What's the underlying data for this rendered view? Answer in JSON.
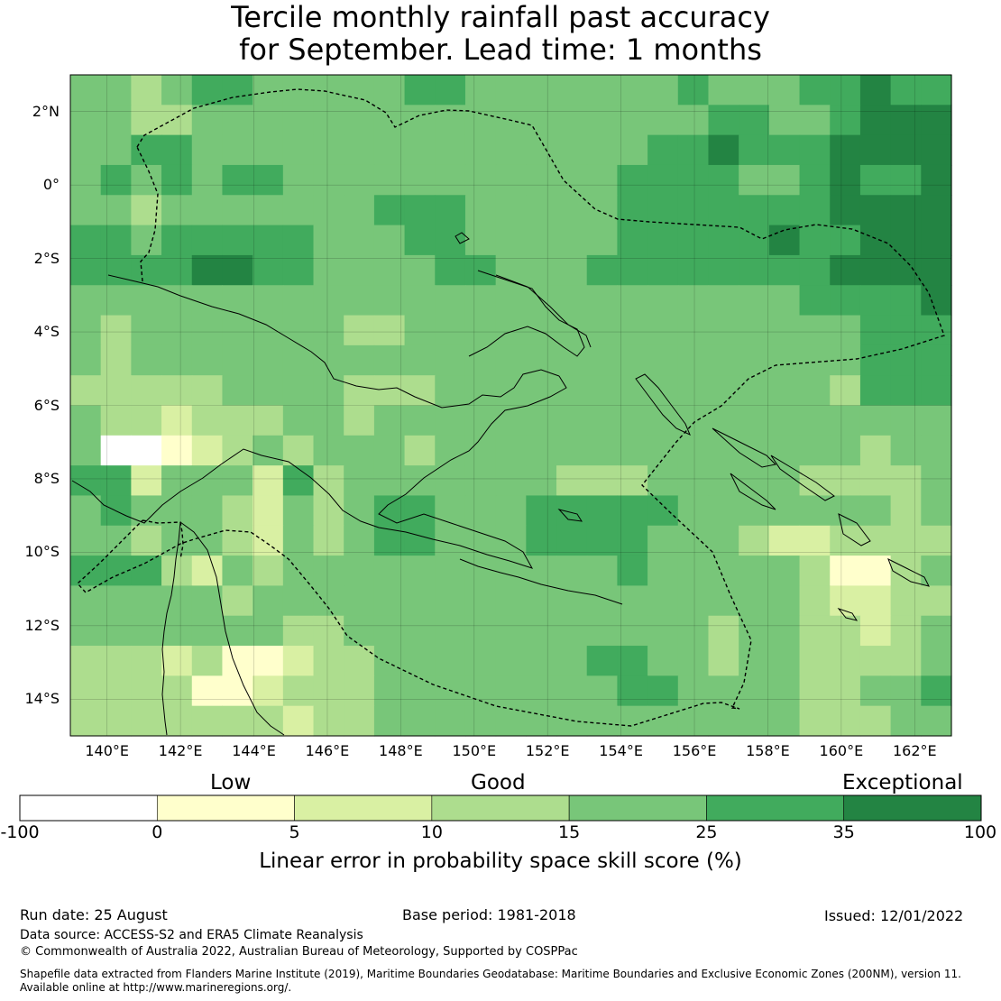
{
  "title": {
    "line1": "Tercile monthly rainfall past accuracy",
    "line2": "for September. Lead time: 1 months"
  },
  "map": {
    "lat_labels": [
      "2°N",
      "0°",
      "2°S",
      "4°S",
      "6°S",
      "8°S",
      "10°S",
      "12°S",
      "14°S"
    ],
    "lon_labels": [
      "140°E",
      "142°E",
      "144°E",
      "146°E",
      "148°E",
      "150°E",
      "152°E",
      "154°E",
      "156°E",
      "158°E",
      "160°E",
      "162°E"
    ],
    "extent": {
      "lon": [
        139,
        163
      ],
      "lat": [
        -15,
        3
      ]
    },
    "grid_resolution_deg": 0.833,
    "eez_boundary_style": "dashed black",
    "coastline_style": "solid black"
  },
  "legend": {
    "categories": [
      "Low",
      "Good",
      "Exceptional"
    ],
    "ticks": [
      "-100",
      "0",
      "5",
      "10",
      "15",
      "25",
      "35",
      "100"
    ],
    "bins": [
      {
        "range": "-100 to 0",
        "color": "#ffffff"
      },
      {
        "range": "0 to 5",
        "color": "#ffffcc"
      },
      {
        "range": "5 to 10",
        "color": "#d9f0a3"
      },
      {
        "range": "10 to 15",
        "color": "#addd8e"
      },
      {
        "range": "15 to 25",
        "color": "#78c679"
      },
      {
        "range": "25 to 35",
        "color": "#41ab5d"
      },
      {
        "range": "35 to 100",
        "color": "#238443"
      }
    ],
    "label": "Linear error in probability space skill score (%)"
  },
  "footer": {
    "run_date": "Run date: 25 August",
    "base_period": "Base period: 1981-2018",
    "issued": "Issued: 12/01/2022",
    "data_source": "Data source: ACCESS-S2 and ERA5 Climate Reanalysis",
    "copyright": "© Commonwealth of Australia 2022, Australian Bureau of Meteorology, Supported by COSPPac",
    "shapefile_line1": "Shapefile data extracted from Flanders Marine Institute (2019), Maritime Boundaries Geodatabase: Maritime Boundaries and Exclusive Economic Zones (200NM), version 11.",
    "shapefile_line2": "Available online at http://www.marineregions.org/."
  }
}
